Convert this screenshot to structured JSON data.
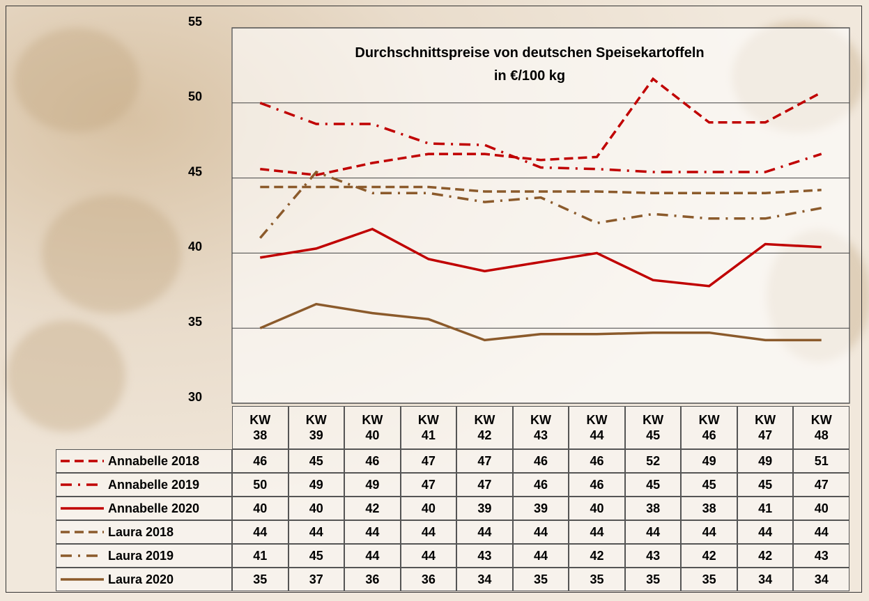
{
  "chart_data": {
    "type": "line",
    "title": "Durchschnittspreise von deutschen Speisekartoffeln",
    "subtitle": "in €/100 kg",
    "categories": [
      "KW 38",
      "KW 39",
      "KW 40",
      "KW 41",
      "KW 42",
      "KW 43",
      "KW 44",
      "KW 45",
      "KW 46",
      "KW 47",
      "KW 48"
    ],
    "ylim": [
      30,
      55
    ],
    "yticks": [
      30,
      35,
      40,
      45,
      50,
      55
    ],
    "grid": true,
    "series": [
      {
        "name": "Annabelle 2018",
        "color": "#c00000",
        "dash": "dashed",
        "values": [
          45.6,
          45.2,
          46.0,
          46.6,
          46.6,
          46.2,
          46.4,
          51.6,
          48.7,
          48.7,
          50.7
        ],
        "value_labels": [
          "46",
          "45",
          "46",
          "47",
          "47",
          "46",
          "46",
          "52",
          "49",
          "49",
          "51"
        ]
      },
      {
        "name": "Annabelle 2019",
        "color": "#c00000",
        "dash": "dashdot",
        "values": [
          50.0,
          48.6,
          48.6,
          47.3,
          47.2,
          45.7,
          45.6,
          45.4,
          45.4,
          45.4,
          46.6
        ],
        "value_labels": [
          "50",
          "49",
          "49",
          "47",
          "47",
          "46",
          "46",
          "45",
          "45",
          "45",
          "47"
        ]
      },
      {
        "name": "Annabelle 2020",
        "color": "#c00000",
        "dash": "solid",
        "values": [
          39.7,
          40.3,
          41.6,
          39.6,
          38.8,
          39.4,
          40.0,
          38.2,
          37.8,
          40.6,
          40.4
        ],
        "value_labels": [
          "40",
          "40",
          "42",
          "40",
          "39",
          "39",
          "40",
          "38",
          "38",
          "41",
          "40"
        ]
      },
      {
        "name": "Laura 2018",
        "color": "#8b5a2b",
        "dash": "dashed",
        "values": [
          44.4,
          44.4,
          44.4,
          44.4,
          44.1,
          44.1,
          44.1,
          44.0,
          44.0,
          44.0,
          44.2
        ],
        "value_labels": [
          "44",
          "44",
          "44",
          "44",
          "44",
          "44",
          "44",
          "44",
          "44",
          "44",
          "44"
        ]
      },
      {
        "name": "Laura 2019",
        "color": "#8b5a2b",
        "dash": "dashdot",
        "values": [
          41.0,
          45.4,
          44.0,
          44.0,
          43.4,
          43.7,
          42.0,
          42.6,
          42.3,
          42.3,
          43.0
        ],
        "value_labels": [
          "41",
          "45",
          "44",
          "44",
          "43",
          "44",
          "42",
          "43",
          "42",
          "42",
          "43"
        ]
      },
      {
        "name": "Laura 2020",
        "color": "#8b5a2b",
        "dash": "solid",
        "values": [
          35.0,
          36.6,
          36.0,
          35.6,
          34.2,
          34.6,
          34.6,
          34.7,
          34.7,
          34.2,
          34.2
        ],
        "value_labels": [
          "35",
          "37",
          "36",
          "36",
          "34",
          "35",
          "35",
          "35",
          "35",
          "34",
          "34"
        ]
      }
    ]
  }
}
